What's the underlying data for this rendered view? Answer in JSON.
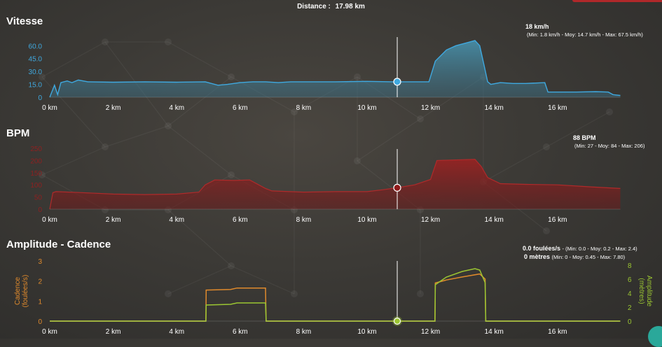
{
  "header": {
    "distance_label": "Distance :",
    "distance_value": "17.98 km"
  },
  "cursor": {
    "distance_km": 10.95
  },
  "colors": {
    "speed": "#3fa9e0",
    "bpm": "#8e2020",
    "cadence": "#e08a2c",
    "amplitude": "#9bc632",
    "text": "#ffffff"
  },
  "sections": {
    "speed": {
      "title": "Vitesse",
      "current": "18 km/h",
      "stats": "(Min: 1.8 km/h - Moy: 14.7 km/h - Max: 67.5 km/h)"
    },
    "bpm": {
      "title": "BPM",
      "current": "88 BPM",
      "stats": "(Min: 27 - Moy: 84 - Max: 206)"
    },
    "ampcad": {
      "title": "Amplitude - Cadence",
      "cadence_current": "0.0 foulées/s",
      "cadence_stats": "- (Min: 0.0 - Moy: 0.2 - Max: 2.4)",
      "amplitude_current": "0 mètres",
      "amplitude_stats": "(Min: 0 - Moy: 0.45 - Max: 7.80)"
    }
  },
  "chart_data": [
    {
      "type": "area",
      "title": "Vitesse",
      "ylabel": "",
      "xlabel": "",
      "x_unit": "km",
      "xlim": [
        0,
        17.98
      ],
      "ylim": [
        0,
        70
      ],
      "xticks": [
        "0 km",
        "2 km",
        "4 km",
        "6 km",
        "8 km",
        "10 km",
        "12 km",
        "14 km",
        "16 km"
      ],
      "yticks": [
        "0",
        "15.0",
        "30.0",
        "45.0",
        "60.0"
      ],
      "series": [
        {
          "x": [
            0,
            0.15,
            0.25,
            0.35,
            0.55,
            0.7,
            0.9,
            1.2,
            2,
            3,
            4,
            4.9,
            5.3,
            5.6,
            6,
            6.4,
            6.8,
            7.2,
            7.6,
            8.4,
            9,
            10,
            10.8,
            10.95,
            11.5,
            11.95,
            12.15,
            12.5,
            12.8,
            13.2,
            13.4,
            13.55,
            13.7,
            13.8,
            13.9,
            14.2,
            14.6,
            15,
            15.6,
            15.7,
            16,
            16.6,
            17.2,
            17.6,
            17.75,
            17.98
          ],
          "y": [
            0,
            14,
            3,
            17,
            19,
            17,
            20,
            18,
            17.5,
            18,
            17.5,
            18,
            14,
            15,
            17,
            18,
            18,
            17,
            18,
            18,
            18,
            18.5,
            18,
            18,
            18,
            18,
            42,
            55,
            60,
            64,
            66,
            60,
            35,
            18,
            15,
            17,
            16,
            16,
            17,
            6,
            6,
            6,
            6.5,
            6,
            3,
            2
          ]
        }
      ]
    },
    {
      "type": "area",
      "title": "BPM",
      "ylabel": "",
      "xlabel": "",
      "x_unit": "km",
      "xlim": [
        0,
        17.98
      ],
      "ylim": [
        0,
        250
      ],
      "xticks": [
        "0 km",
        "2 km",
        "4 km",
        "6 km",
        "8 km",
        "10 km",
        "12 km",
        "14 km",
        "16 km"
      ],
      "yticks": [
        "0",
        "50",
        "100",
        "150",
        "200",
        "250"
      ],
      "series": [
        {
          "x": [
            0,
            0.1,
            0.2,
            1,
            2,
            3,
            4,
            4.7,
            4.9,
            5.2,
            5.8,
            6.3,
            6.8,
            7,
            8,
            9,
            10,
            10.5,
            10.95,
            11.5,
            12.0,
            12.2,
            13.4,
            13.6,
            13.8,
            14.2,
            15,
            16,
            17,
            17.98
          ],
          "y": [
            0,
            68,
            72,
            68,
            62,
            60,
            62,
            70,
            100,
            120,
            118,
            120,
            85,
            75,
            70,
            72,
            72,
            80,
            88,
            100,
            122,
            200,
            205,
            175,
            130,
            105,
            102,
            100,
            92,
            85
          ]
        }
      ]
    },
    {
      "type": "line",
      "title": "Amplitude - Cadence",
      "ylabel": "Cadence (foulées/s)",
      "y2label": "Amplitude (mètres)",
      "xlabel": "",
      "x_unit": "km",
      "xlim": [
        0,
        17.98
      ],
      "ylim": [
        0,
        3
      ],
      "y2lim": [
        0,
        8
      ],
      "xticks": [
        "0 km",
        "2 km",
        "4 km",
        "6 km",
        "8 km",
        "10 km",
        "12 km",
        "14 km",
        "16 km"
      ],
      "yticks": [
        "0",
        "1",
        "2",
        "3"
      ],
      "y2ticks": [
        "0",
        "2",
        "4",
        "6",
        "8"
      ],
      "series": [
        {
          "name": "Cadence",
          "axis": "left",
          "x": [
            0,
            4.92,
            4.93,
            5.7,
            5.9,
            6.8,
            6.82,
            12.14,
            12.15,
            12.5,
            13.0,
            13.55,
            13.72,
            13.74,
            17.98
          ],
          "y": [
            0,
            0,
            1.55,
            1.58,
            1.65,
            1.65,
            0,
            0,
            1.9,
            2.05,
            2.2,
            2.35,
            2.1,
            0,
            0
          ]
        },
        {
          "name": "Amplitude",
          "axis": "right",
          "x": [
            0,
            4.92,
            4.93,
            5.7,
            5.9,
            6.8,
            6.82,
            12.14,
            12.15,
            12.5,
            13.0,
            13.4,
            13.55,
            13.72,
            13.74,
            17.98
          ],
          "y": [
            0,
            0,
            2.3,
            2.4,
            2.6,
            2.6,
            0,
            0,
            5.2,
            6.3,
            7.1,
            7.5,
            7.3,
            5.5,
            0,
            0
          ]
        }
      ]
    }
  ]
}
